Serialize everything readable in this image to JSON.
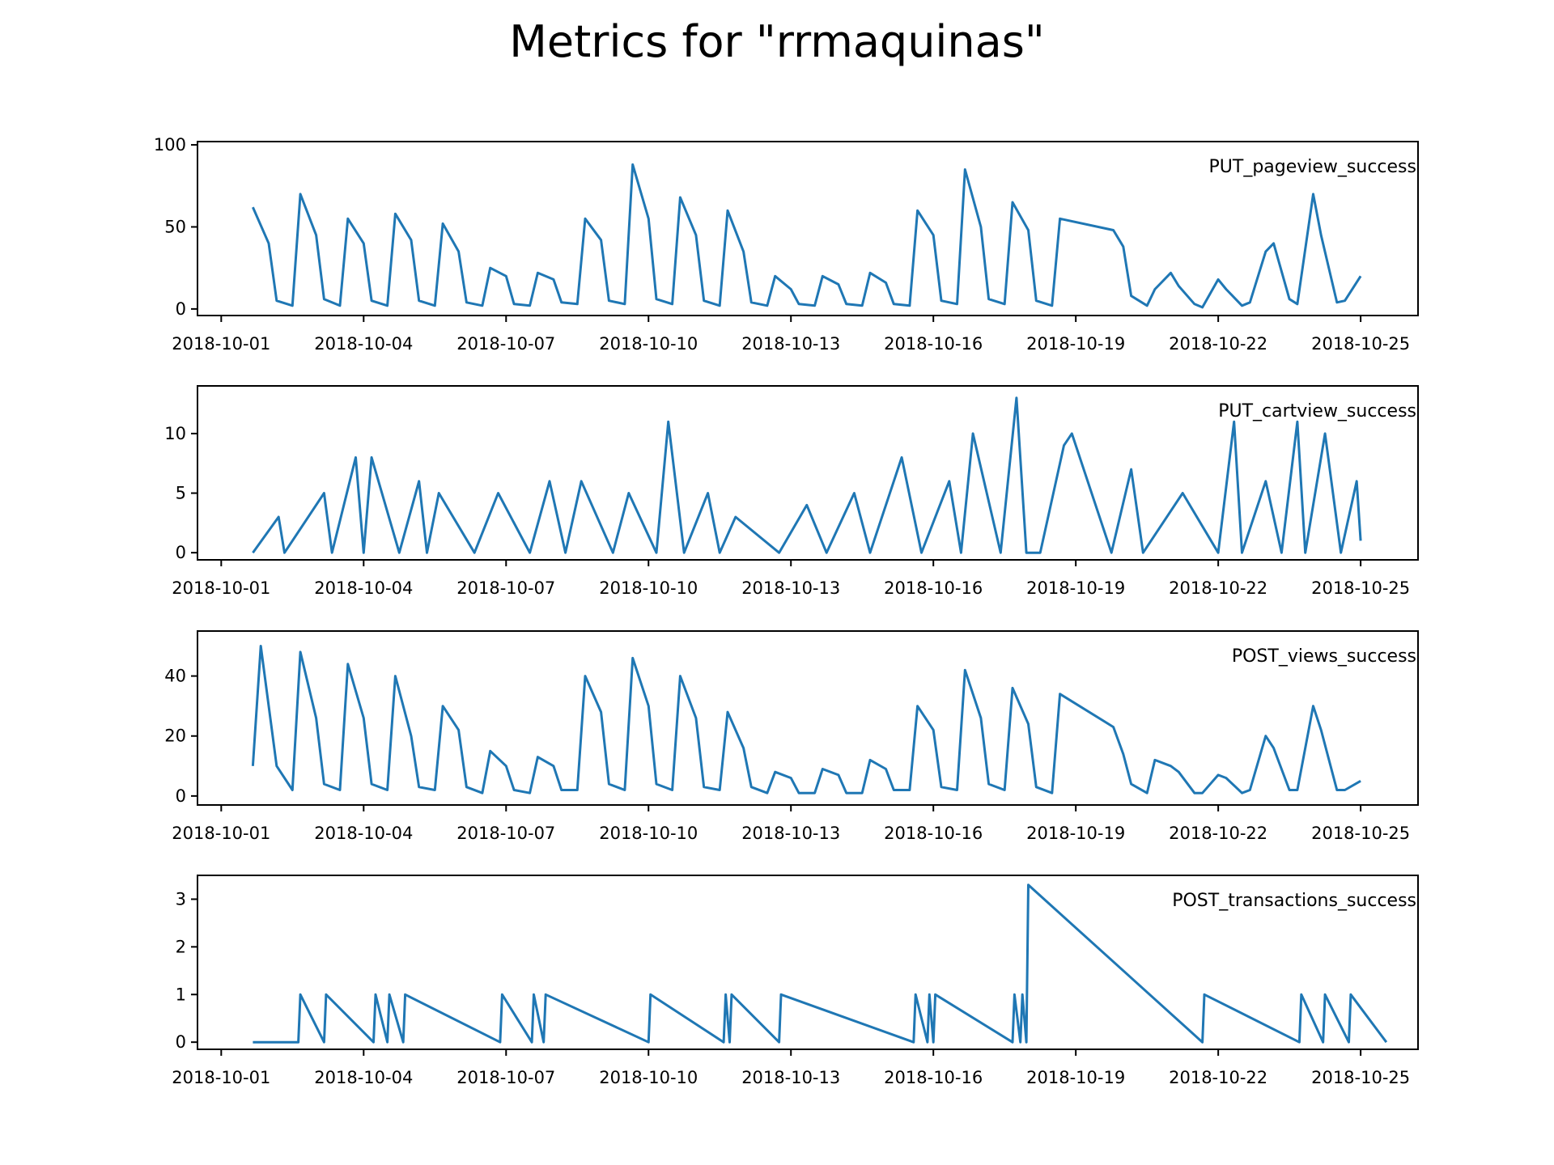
{
  "figure": {
    "title": "Metrics for \"rrmaquinas\"",
    "line_color": "#1f77b4"
  },
  "x_axis": {
    "tick_labels": [
      "2018-10-01",
      "2018-10-04",
      "2018-10-07",
      "2018-10-10",
      "2018-10-13",
      "2018-10-16",
      "2018-10-19",
      "2018-10-22",
      "2018-10-25"
    ],
    "tick_dates": [
      "2018-10-01",
      "2018-10-04",
      "2018-10-07",
      "2018-10-10",
      "2018-10-13",
      "2018-10-16",
      "2018-10-19",
      "2018-10-22",
      "2018-10-25"
    ],
    "range": [
      "2018-09-30T12:00",
      "2018-10-26T05:00"
    ]
  },
  "chart_data": [
    {
      "type": "line",
      "name": "PUT_pageview_success",
      "ylim": [
        -4,
        102
      ],
      "y_ticks": [
        0,
        50,
        100
      ],
      "x": [
        "2018-10-01T16:00",
        "2018-10-02T00:00",
        "2018-10-02T04:00",
        "2018-10-02T12:00",
        "2018-10-02T16:00",
        "2018-10-03T00:00",
        "2018-10-03T04:00",
        "2018-10-03T12:00",
        "2018-10-03T16:00",
        "2018-10-04T00:00",
        "2018-10-04T04:00",
        "2018-10-04T12:00",
        "2018-10-04T16:00",
        "2018-10-05T00:00",
        "2018-10-05T04:00",
        "2018-10-05T12:00",
        "2018-10-05T16:00",
        "2018-10-06T00:00",
        "2018-10-06T04:00",
        "2018-10-06T12:00",
        "2018-10-06T16:00",
        "2018-10-07T00:00",
        "2018-10-07T04:00",
        "2018-10-07T12:00",
        "2018-10-07T16:00",
        "2018-10-08T00:00",
        "2018-10-08T04:00",
        "2018-10-08T12:00",
        "2018-10-08T16:00",
        "2018-10-09T00:00",
        "2018-10-09T04:00",
        "2018-10-09T12:00",
        "2018-10-09T16:00",
        "2018-10-10T00:00",
        "2018-10-10T04:00",
        "2018-10-10T12:00",
        "2018-10-10T16:00",
        "2018-10-11T00:00",
        "2018-10-11T04:00",
        "2018-10-11T12:00",
        "2018-10-11T16:00",
        "2018-10-12T00:00",
        "2018-10-12T04:00",
        "2018-10-12T12:00",
        "2018-10-12T16:00",
        "2018-10-13T00:00",
        "2018-10-13T04:00",
        "2018-10-13T12:00",
        "2018-10-13T16:00",
        "2018-10-14T00:00",
        "2018-10-14T04:00",
        "2018-10-14T12:00",
        "2018-10-14T16:00",
        "2018-10-15T00:00",
        "2018-10-15T04:00",
        "2018-10-15T12:00",
        "2018-10-15T16:00",
        "2018-10-16T00:00",
        "2018-10-16T04:00",
        "2018-10-16T12:00",
        "2018-10-16T16:00",
        "2018-10-17T00:00",
        "2018-10-17T04:00",
        "2018-10-17T12:00",
        "2018-10-17T16:00",
        "2018-10-18T00:00",
        "2018-10-18T04:00",
        "2018-10-18T12:00",
        "2018-10-18T16:00",
        "2018-10-19T19:00",
        "2018-10-20T00:00",
        "2018-10-20T04:00",
        "2018-10-20T12:00",
        "2018-10-20T16:00",
        "2018-10-21T00:00",
        "2018-10-21T04:00",
        "2018-10-21T12:00",
        "2018-10-21T16:00",
        "2018-10-22T00:00",
        "2018-10-22T04:00",
        "2018-10-22T12:00",
        "2018-10-22T16:00",
        "2018-10-23T00:00",
        "2018-10-23T04:00",
        "2018-10-23T12:00",
        "2018-10-23T16:00",
        "2018-10-24T00:00",
        "2018-10-24T04:00",
        "2018-10-24T12:00",
        "2018-10-24T16:00",
        "2018-10-25T00:00"
      ],
      "values": [
        62,
        40,
        5,
        2,
        70,
        45,
        6,
        2,
        55,
        40,
        5,
        2,
        58,
        42,
        5,
        2,
        52,
        35,
        4,
        2,
        25,
        20,
        3,
        2,
        22,
        18,
        4,
        3,
        55,
        42,
        5,
        3,
        88,
        55,
        6,
        3,
        68,
        45,
        5,
        2,
        60,
        35,
        4,
        2,
        20,
        12,
        3,
        2,
        20,
        15,
        3,
        2,
        22,
        16,
        3,
        2,
        60,
        45,
        5,
        3,
        85,
        50,
        6,
        3,
        65,
        48,
        5,
        2,
        55,
        48,
        38,
        8,
        2,
        12,
        22,
        14,
        3,
        1,
        18,
        12,
        2,
        4,
        35,
        40,
        6,
        3,
        70,
        45,
        4,
        5,
        20
      ]
    },
    {
      "type": "line",
      "name": "PUT_cartview_success",
      "ylim": [
        -0.6,
        14
      ],
      "y_ticks": [
        0,
        5,
        10
      ],
      "x": [
        "2018-10-01T16:00",
        "2018-10-02T05:00",
        "2018-10-02T08:00",
        "2018-10-03T04:00",
        "2018-10-03T08:00",
        "2018-10-03T20:00",
        "2018-10-04T00:00",
        "2018-10-04T04:00",
        "2018-10-04T18:00",
        "2018-10-05T04:00",
        "2018-10-05T08:00",
        "2018-10-05T14:00",
        "2018-10-06T08:00",
        "2018-10-06T20:00",
        "2018-10-07T12:00",
        "2018-10-07T22:00",
        "2018-10-08T06:00",
        "2018-10-08T14:00",
        "2018-10-09T06:00",
        "2018-10-09T14:00",
        "2018-10-10T04:00",
        "2018-10-10T10:00",
        "2018-10-10T18:00",
        "2018-10-11T06:00",
        "2018-10-11T12:00",
        "2018-10-11T20:00",
        "2018-10-12T18:00",
        "2018-10-13T08:00",
        "2018-10-13T18:00",
        "2018-10-14T08:00",
        "2018-10-14T16:00",
        "2018-10-15T08:00",
        "2018-10-15T18:00",
        "2018-10-16T08:00",
        "2018-10-16T14:00",
        "2018-10-16T20:00",
        "2018-10-17T10:00",
        "2018-10-17T18:00",
        "2018-10-17T23:00",
        "2018-10-18T06:00",
        "2018-10-18T18:00",
        "2018-10-18T22:00",
        "2018-10-19T18:00",
        "2018-10-20T04:00",
        "2018-10-20T10:00",
        "2018-10-21T06:00",
        "2018-10-22T00:00",
        "2018-10-22T08:00",
        "2018-10-22T12:00",
        "2018-10-23T00:00",
        "2018-10-23T08:00",
        "2018-10-23T16:00",
        "2018-10-23T20:00",
        "2018-10-24T06:00",
        "2018-10-24T14:00",
        "2018-10-24T22:00",
        "2018-10-25T00:00"
      ],
      "values": [
        0,
        3,
        0,
        5,
        0,
        8,
        0,
        8,
        0,
        6,
        0,
        5,
        0,
        5,
        0,
        6,
        0,
        6,
        0,
        5,
        0,
        11,
        0,
        5,
        0,
        3,
        0,
        4,
        0,
        5,
        0,
        8,
        0,
        6,
        0,
        10,
        0,
        13,
        0,
        0,
        9,
        10,
        0,
        7,
        0,
        5,
        0,
        11,
        0,
        6,
        0,
        11,
        0,
        10,
        0,
        6,
        1
      ]
    },
    {
      "type": "line",
      "name": "POST_views_success",
      "ylim": [
        -3,
        55
      ],
      "y_ticks": [
        0,
        20,
        40
      ],
      "x": [
        "2018-10-01T16:00",
        "2018-10-01T20:00",
        "2018-10-02T04:00",
        "2018-10-02T12:00",
        "2018-10-02T16:00",
        "2018-10-03T00:00",
        "2018-10-03T04:00",
        "2018-10-03T12:00",
        "2018-10-03T16:00",
        "2018-10-04T00:00",
        "2018-10-04T04:00",
        "2018-10-04T12:00",
        "2018-10-04T16:00",
        "2018-10-05T00:00",
        "2018-10-05T04:00",
        "2018-10-05T12:00",
        "2018-10-05T16:00",
        "2018-10-06T00:00",
        "2018-10-06T04:00",
        "2018-10-06T12:00",
        "2018-10-06T16:00",
        "2018-10-07T00:00",
        "2018-10-07T04:00",
        "2018-10-07T12:00",
        "2018-10-07T16:00",
        "2018-10-08T00:00",
        "2018-10-08T04:00",
        "2018-10-08T12:00",
        "2018-10-08T16:00",
        "2018-10-09T00:00",
        "2018-10-09T04:00",
        "2018-10-09T12:00",
        "2018-10-09T16:00",
        "2018-10-10T00:00",
        "2018-10-10T04:00",
        "2018-10-10T12:00",
        "2018-10-10T16:00",
        "2018-10-11T00:00",
        "2018-10-11T04:00",
        "2018-10-11T12:00",
        "2018-10-11T16:00",
        "2018-10-12T00:00",
        "2018-10-12T04:00",
        "2018-10-12T12:00",
        "2018-10-12T16:00",
        "2018-10-13T00:00",
        "2018-10-13T04:00",
        "2018-10-13T12:00",
        "2018-10-13T16:00",
        "2018-10-14T00:00",
        "2018-10-14T04:00",
        "2018-10-14T12:00",
        "2018-10-14T16:00",
        "2018-10-15T00:00",
        "2018-10-15T04:00",
        "2018-10-15T12:00",
        "2018-10-15T16:00",
        "2018-10-16T00:00",
        "2018-10-16T04:00",
        "2018-10-16T12:00",
        "2018-10-16T16:00",
        "2018-10-17T00:00",
        "2018-10-17T04:00",
        "2018-10-17T12:00",
        "2018-10-17T16:00",
        "2018-10-18T00:00",
        "2018-10-18T04:00",
        "2018-10-18T12:00",
        "2018-10-18T16:00",
        "2018-10-19T19:00",
        "2018-10-20T00:00",
        "2018-10-20T04:00",
        "2018-10-20T12:00",
        "2018-10-20T16:00",
        "2018-10-21T00:00",
        "2018-10-21T04:00",
        "2018-10-21T12:00",
        "2018-10-21T16:00",
        "2018-10-22T00:00",
        "2018-10-22T04:00",
        "2018-10-22T12:00",
        "2018-10-22T16:00",
        "2018-10-23T00:00",
        "2018-10-23T04:00",
        "2018-10-23T12:00",
        "2018-10-23T16:00",
        "2018-10-24T00:00",
        "2018-10-24T04:00",
        "2018-10-24T12:00",
        "2018-10-24T16:00",
        "2018-10-25T00:00"
      ],
      "values": [
        10,
        50,
        10,
        2,
        48,
        26,
        4,
        2,
        44,
        26,
        4,
        2,
        40,
        20,
        3,
        2,
        30,
        22,
        3,
        1,
        15,
        10,
        2,
        1,
        13,
        10,
        2,
        2,
        40,
        28,
        4,
        2,
        46,
        30,
        4,
        2,
        40,
        26,
        3,
        2,
        28,
        16,
        3,
        1,
        8,
        6,
        1,
        1,
        9,
        7,
        1,
        1,
        12,
        9,
        2,
        2,
        30,
        22,
        3,
        2,
        42,
        26,
        4,
        2,
        36,
        24,
        3,
        1,
        34,
        23,
        14,
        4,
        1,
        12,
        10,
        8,
        1,
        1,
        7,
        6,
        1,
        2,
        20,
        16,
        2,
        2,
        30,
        22,
        2,
        2,
        5
      ]
    },
    {
      "type": "line",
      "name": "POST_transactions_success",
      "ylim": [
        -0.15,
        3.5
      ],
      "y_ticks": [
        0,
        1,
        2,
        3
      ],
      "x": [
        "2018-10-01T16:00",
        "2018-10-02T15:00",
        "2018-10-02T16:00",
        "2018-10-03T04:00",
        "2018-10-03T05:00",
        "2018-10-04T05:00",
        "2018-10-04T06:00",
        "2018-10-04T12:00",
        "2018-10-04T13:00",
        "2018-10-04T20:00",
        "2018-10-04T21:00",
        "2018-10-06T21:00",
        "2018-10-06T22:00",
        "2018-10-07T13:00",
        "2018-10-07T14:00",
        "2018-10-07T19:00",
        "2018-10-07T20:00",
        "2018-10-10T00:00",
        "2018-10-10T01:00",
        "2018-10-11T14:00",
        "2018-10-11T15:00",
        "2018-10-11T17:00",
        "2018-10-11T18:00",
        "2018-10-12T18:00",
        "2018-10-12T19:00",
        "2018-10-15T14:00",
        "2018-10-15T15:00",
        "2018-10-15T21:00",
        "2018-10-15T22:00",
        "2018-10-16T00:00",
        "2018-10-16T01:00",
        "2018-10-17T16:00",
        "2018-10-17T17:00",
        "2018-10-17T20:00",
        "2018-10-17T21:00",
        "2018-10-17T23:00",
        "2018-10-18T00:00",
        "2018-10-21T16:00",
        "2018-10-21T17:00",
        "2018-10-23T17:00",
        "2018-10-23T18:00",
        "2018-10-24T05:00",
        "2018-10-24T06:00",
        "2018-10-24T18:00",
        "2018-10-24T19:00",
        "2018-10-25T13:00"
      ],
      "values": [
        0,
        0,
        1,
        0,
        1,
        0,
        1,
        0,
        1,
        0,
        1,
        0,
        1,
        0,
        1,
        0,
        1,
        0,
        1,
        0,
        1,
        0,
        1,
        0,
        1,
        0,
        1,
        0,
        1,
        0,
        1,
        0,
        1,
        0,
        1,
        0,
        3.3,
        0,
        1,
        0,
        1,
        0,
        1,
        0,
        1,
        0
      ]
    }
  ]
}
